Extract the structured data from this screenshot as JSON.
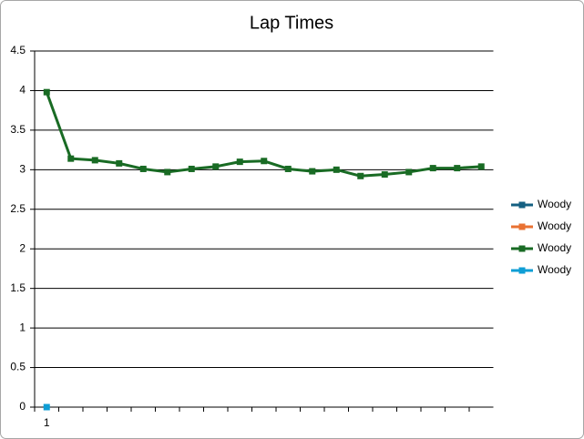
{
  "chart_data": {
    "type": "line",
    "title": "Lap Times",
    "categories": [
      "1",
      null,
      null,
      null,
      null,
      null,
      null,
      null,
      null,
      null,
      null,
      null,
      null,
      null,
      null,
      null,
      null,
      null,
      null
    ],
    "series": [
      {
        "name": "Woody",
        "color": "#156082",
        "values": [
          null,
          null,
          null,
          null,
          null,
          null,
          null,
          null,
          null,
          null,
          null,
          null,
          null,
          null,
          null,
          null,
          null,
          null,
          null
        ]
      },
      {
        "name": "Woody",
        "color": "#e97132",
        "values": [
          null,
          null,
          null,
          null,
          null,
          null,
          null,
          null,
          null,
          null,
          null,
          null,
          null,
          null,
          null,
          null,
          null,
          null,
          null
        ]
      },
      {
        "name": "Woody",
        "color": "#196b24",
        "values": [
          3.98,
          3.14,
          3.12,
          3.08,
          3.01,
          2.97,
          3.01,
          3.04,
          3.1,
          3.11,
          3.01,
          2.98,
          3.0,
          2.92,
          2.94,
          2.97,
          3.02,
          3.02,
          3.04
        ]
      },
      {
        "name": "Woody",
        "color": "#0f9ed5",
        "values": [
          0,
          null,
          null,
          null,
          null,
          null,
          null,
          null,
          null,
          null,
          null,
          null,
          null,
          null,
          null,
          null,
          null,
          null,
          null
        ]
      }
    ],
    "ylim": [
      0,
      4.5
    ],
    "yticks": [
      0,
      0.5,
      1,
      1.5,
      2,
      2.5,
      3,
      3.5,
      4,
      4.5
    ],
    "grid": true,
    "legend": "right"
  }
}
